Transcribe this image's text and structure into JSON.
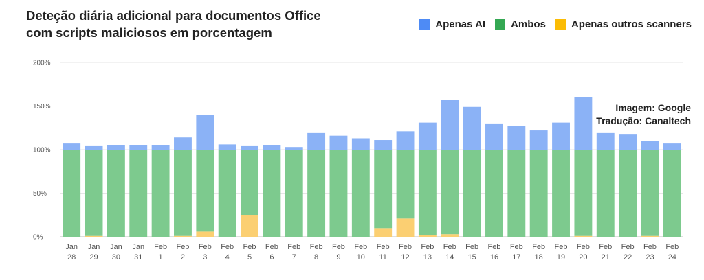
{
  "chart_data": {
    "type": "bar",
    "stacked": true,
    "title": [
      "Deteção diária adicional para documentos Office",
      "com scripts maliciosos em porcentagem"
    ],
    "legend_position": "top-right",
    "credit": [
      "Imagem: Google",
      "Tradução: Canaltech"
    ],
    "ylim": [
      0,
      200
    ],
    "yticks": [
      "0%",
      "50%",
      "100%",
      "150%",
      "200%"
    ],
    "grid": true,
    "categories": [
      [
        "Jan",
        "28"
      ],
      [
        "Jan",
        "29"
      ],
      [
        "Jan",
        "30"
      ],
      [
        "Jan",
        "31"
      ],
      [
        "Feb",
        "1"
      ],
      [
        "Feb",
        "2"
      ],
      [
        "Feb",
        "3"
      ],
      [
        "Feb",
        "4"
      ],
      [
        "Feb",
        "5"
      ],
      [
        "Feb",
        "6"
      ],
      [
        "Feb",
        "7"
      ],
      [
        "Feb",
        "8"
      ],
      [
        "Feb",
        "9"
      ],
      [
        "Feb",
        "10"
      ],
      [
        "Feb",
        "11"
      ],
      [
        "Feb",
        "12"
      ],
      [
        "Feb",
        "13"
      ],
      [
        "Feb",
        "14"
      ],
      [
        "Feb",
        "15"
      ],
      [
        "Feb",
        "16"
      ],
      [
        "Feb",
        "17"
      ],
      [
        "Feb",
        "18"
      ],
      [
        "Feb",
        "19"
      ],
      [
        "Feb",
        "20"
      ],
      [
        "Feb",
        "21"
      ],
      [
        "Feb",
        "22"
      ],
      [
        "Feb",
        "23"
      ],
      [
        "Feb",
        "24"
      ]
    ],
    "series": [
      {
        "name": "Apenas outros scanners",
        "color": "#fbcf72",
        "values": [
          0,
          1,
          0,
          0,
          0,
          1,
          6,
          0,
          25,
          0,
          0,
          0,
          0,
          0,
          10,
          21,
          2,
          3,
          0,
          0,
          0,
          0,
          0,
          1,
          0,
          0,
          1,
          0
        ]
      },
      {
        "name": "Ambos",
        "color": "#7dca8e",
        "values": [
          100,
          99,
          100,
          100,
          100,
          99,
          94,
          100,
          75,
          100,
          100,
          100,
          100,
          100,
          90,
          79,
          98,
          97,
          100,
          100,
          100,
          100,
          100,
          99,
          100,
          100,
          99,
          100
        ]
      },
      {
        "name": "Apenas AI",
        "color": "#8bb2f6",
        "values": [
          7,
          4,
          5,
          5,
          5,
          14,
          40,
          6,
          4,
          5,
          3,
          19,
          16,
          13,
          11,
          21,
          31,
          57,
          49,
          30,
          27,
          22,
          31,
          60,
          19,
          18,
          10,
          7
        ]
      }
    ]
  },
  "legend": [
    {
      "label": "Apenas AI",
      "color": "#4e8bf5"
    },
    {
      "label": "Ambos",
      "color": "#34a853"
    },
    {
      "label": "Apenas outros scanners",
      "color": "#fbbc05"
    }
  ]
}
